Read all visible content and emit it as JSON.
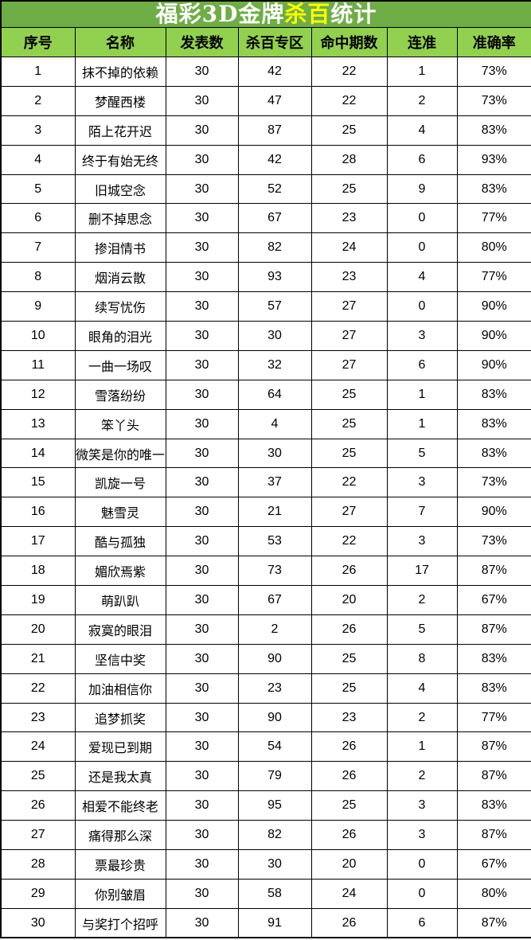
{
  "title": {
    "prefix": "福彩3D金牌",
    "highlight": "杀百",
    "suffix": "统计"
  },
  "colors": {
    "title_bg": "#6FAD47",
    "header_bg": "#92D050",
    "title_text": "#FFFFFF",
    "title_highlight_text": "#FFFF00",
    "body_text": "#000000",
    "grid_border": "#000000",
    "row_bg": "#FFFFFF"
  },
  "chart_data": {
    "type": "table",
    "title": "福彩3D金牌杀百统计",
    "columns": [
      "序号",
      "名称",
      "发表数",
      "杀百专区",
      "命中期数",
      "连准",
      "准确率"
    ],
    "column_keys": [
      "index",
      "name",
      "published",
      "kill-zone",
      "hit-periods",
      "streak",
      "accuracy"
    ],
    "rows": [
      [
        "1",
        "抹不掉的依赖",
        "30",
        "42",
        "22",
        "1",
        "73%"
      ],
      [
        "2",
        "梦醒西楼",
        "30",
        "47",
        "22",
        "2",
        "73%"
      ],
      [
        "3",
        "陌上花开迟",
        "30",
        "87",
        "25",
        "4",
        "83%"
      ],
      [
        "4",
        "终于有始无终",
        "30",
        "42",
        "28",
        "6",
        "93%"
      ],
      [
        "5",
        "旧城空念",
        "30",
        "52",
        "25",
        "9",
        "83%"
      ],
      [
        "6",
        "删不掉思念",
        "30",
        "67",
        "23",
        "0",
        "77%"
      ],
      [
        "7",
        "掺泪情书",
        "30",
        "82",
        "24",
        "0",
        "80%"
      ],
      [
        "8",
        "烟消云散",
        "30",
        "93",
        "23",
        "4",
        "77%"
      ],
      [
        "9",
        "续写忧伤",
        "30",
        "57",
        "27",
        "0",
        "90%"
      ],
      [
        "10",
        "眼角的泪光",
        "30",
        "30",
        "27",
        "3",
        "90%"
      ],
      [
        "11",
        "一曲一场叹",
        "30",
        "32",
        "27",
        "6",
        "90%"
      ],
      [
        "12",
        "雪落纷纷",
        "30",
        "64",
        "25",
        "1",
        "83%"
      ],
      [
        "13",
        "笨丫头",
        "30",
        "4",
        "25",
        "1",
        "83%"
      ],
      [
        "14",
        "微笑是你的唯一",
        "30",
        "30",
        "25",
        "5",
        "83%"
      ],
      [
        "15",
        "凯旋一号",
        "30",
        "37",
        "22",
        "3",
        "73%"
      ],
      [
        "16",
        "魅雪灵",
        "30",
        "21",
        "27",
        "7",
        "90%"
      ],
      [
        "17",
        "酷与孤独",
        "30",
        "53",
        "22",
        "3",
        "73%"
      ],
      [
        "18",
        "媚欣焉紫",
        "30",
        "73",
        "26",
        "17",
        "87%"
      ],
      [
        "19",
        "萌趴趴",
        "30",
        "67",
        "20",
        "2",
        "67%"
      ],
      [
        "20",
        "寂寞的眼泪",
        "30",
        "2",
        "26",
        "5",
        "87%"
      ],
      [
        "21",
        "坚信中奖",
        "30",
        "90",
        "25",
        "8",
        "83%"
      ],
      [
        "22",
        "加油相信你",
        "30",
        "23",
        "25",
        "4",
        "83%"
      ],
      [
        "23",
        "追梦抓奖",
        "30",
        "90",
        "23",
        "2",
        "77%"
      ],
      [
        "24",
        "爱现已到期",
        "30",
        "54",
        "26",
        "1",
        "87%"
      ],
      [
        "25",
        "还是我太真",
        "30",
        "79",
        "26",
        "2",
        "87%"
      ],
      [
        "26",
        "相爱不能终老",
        "30",
        "95",
        "25",
        "3",
        "83%"
      ],
      [
        "27",
        "痛得那么深",
        "30",
        "82",
        "26",
        "3",
        "87%"
      ],
      [
        "28",
        "票最珍贵",
        "30",
        "30",
        "20",
        "0",
        "67%"
      ],
      [
        "29",
        "你别皱眉",
        "30",
        "58",
        "24",
        "0",
        "80%"
      ],
      [
        "30",
        "与奖打个招呼",
        "30",
        "91",
        "26",
        "6",
        "87%"
      ]
    ]
  }
}
